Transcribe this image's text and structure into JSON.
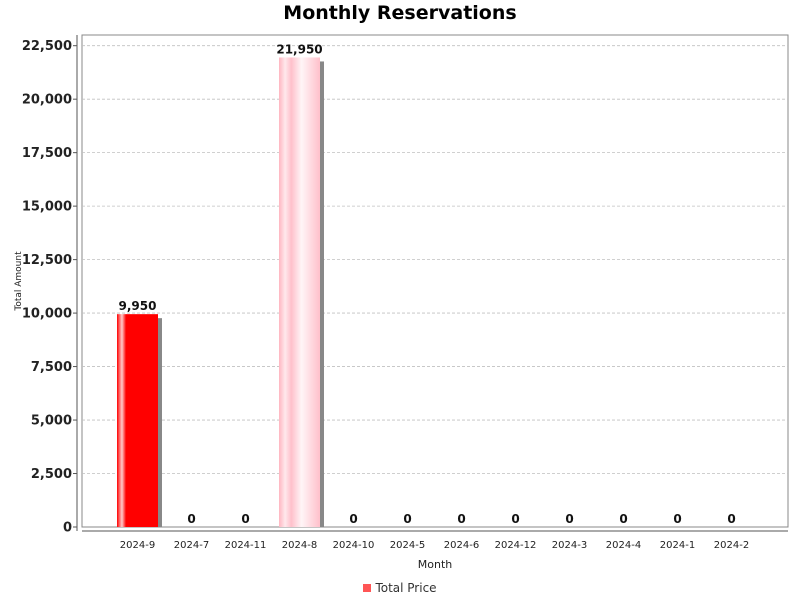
{
  "chart_data": {
    "type": "bar",
    "title": "Monthly Reservations",
    "xlabel": "Month",
    "ylabel": "Total Amount",
    "categories": [
      "2024-9",
      "2024-7",
      "2024-11",
      "2024-8",
      "2024-10",
      "2024-5",
      "2024-6",
      "2024-12",
      "2024-3",
      "2024-4",
      "2024-1",
      "2024-2"
    ],
    "series": [
      {
        "name": "Total Price",
        "values": [
          9950,
          0,
          0,
          21950,
          0,
          0,
          0,
          0,
          0,
          0,
          0,
          0
        ],
        "value_labels": [
          "9,950",
          "0",
          "0",
          "21,950",
          "0",
          "0",
          "0",
          "0",
          "0",
          "0",
          "0",
          "0"
        ]
      }
    ],
    "ylim": [
      0,
      23000
    ],
    "yticks": [
      0,
      2500,
      5000,
      7500,
      10000,
      12500,
      15000,
      17500,
      20000,
      22500
    ],
    "ytick_labels": [
      "0",
      "2,500",
      "5,000",
      "7,500",
      "10,000",
      "12,500",
      "15,000",
      "17,500",
      "20,000",
      "22,500"
    ],
    "grid": true,
    "legend_position": "bottom",
    "colors": {
      "bar_primary": "#ff0000",
      "bar_secondary": "#ffc0cb",
      "legend_swatch": "#ff5555",
      "shadow": "#888888",
      "grid": "#c0c0c0"
    }
  }
}
